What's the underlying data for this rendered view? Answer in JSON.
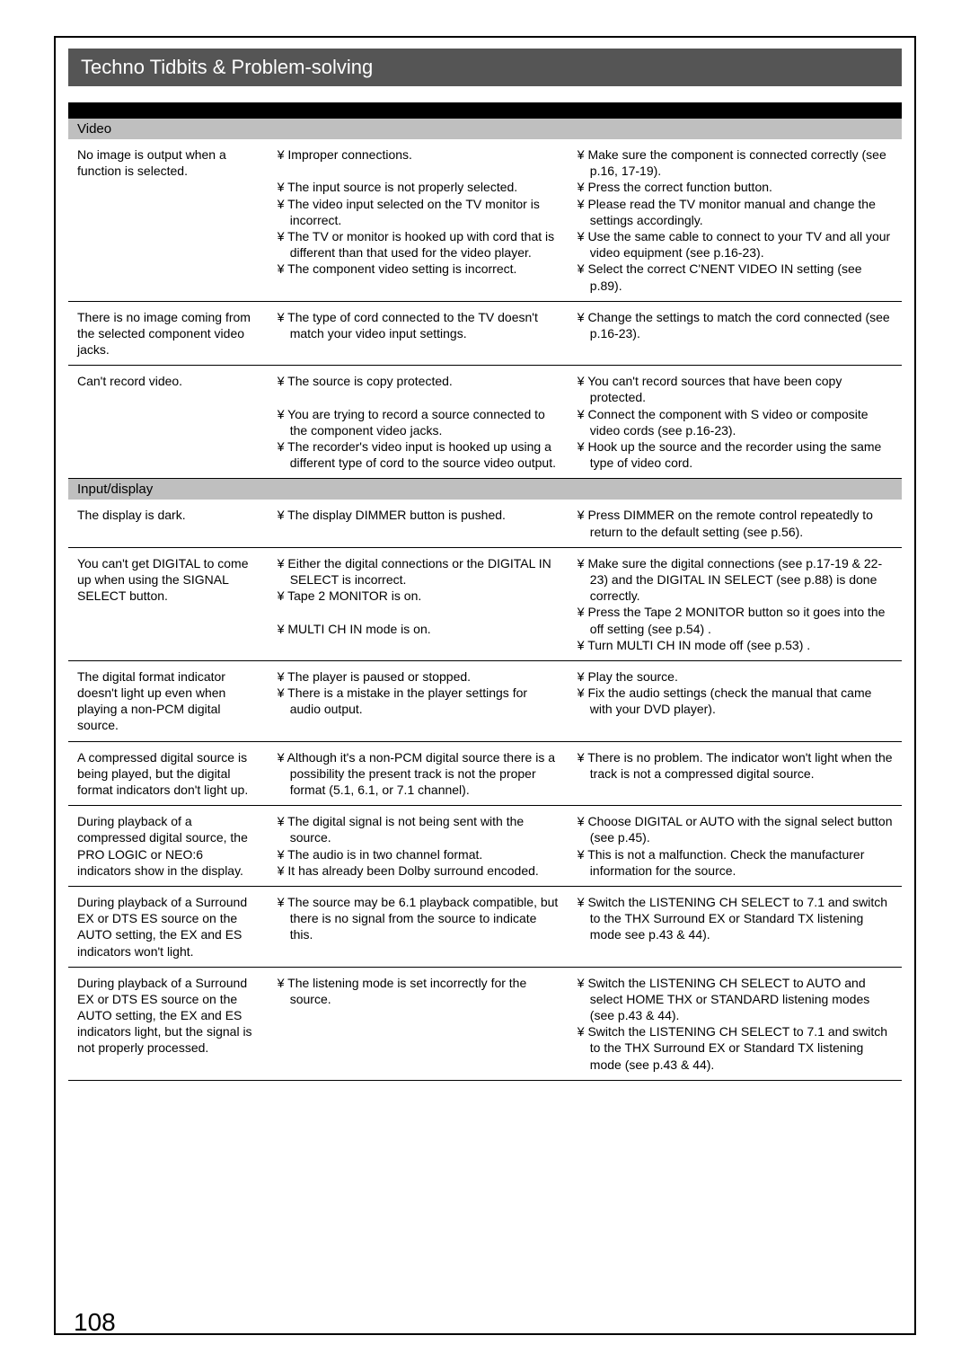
{
  "title": "Techno Tidbits & Problem-solving",
  "page_number": "108",
  "colors": {
    "title_bg": "#555555",
    "black_band": "#000000",
    "section_bg": "#bfbfbf"
  },
  "sections": [
    {
      "label": "Video",
      "rows": [
        {
          "problem": "No image is output when a function is selected.",
          "causes": [
            "¥  Improper connections.",
            "",
            "¥  The input source is not properly selected.",
            "¥  The video input selected on the TV monitor is incorrect.",
            "¥  The TV or monitor is hooked up with cord that is different than that used for the video player.",
            "¥  The component video setting is incorrect."
          ],
          "remedies": [
            "¥  Make sure the component is connected correctly (see p.16, 17-19).",
            "¥  Press the correct function button.",
            "¥  Please read the TV monitor manual and change the settings accordingly.",
            "¥  Use the same cable to connect to your TV and all your video equipment (see p.16-23).",
            "¥  Select the correct C'NENT VIDEO IN setting (see p.89)."
          ]
        },
        {
          "problem": "There is no image coming from the selected component video jacks.",
          "causes": [
            "¥  The type of cord connected to the TV doesn't match your video input settings."
          ],
          "remedies": [
            "¥  Change the settings to match the cord connected (see p.16-23)."
          ]
        },
        {
          "problem": "Can't record video.",
          "causes": [
            "¥  The source is copy protected.",
            "",
            "¥  You are trying to record a source connected to the component video jacks.",
            "¥  The recorder's video input is hooked up using a different type of cord to the source video output."
          ],
          "remedies": [
            "¥  You can't record sources that have been copy protected.",
            "¥  Connect the component with S video or composite video cords (see p.16-23).",
            "¥  Hook up the source and the recorder using the same type of video cord."
          ]
        }
      ]
    },
    {
      "label": "Input/display",
      "rows": [
        {
          "problem": "The display is dark.",
          "causes": [
            "¥  The display DIMMER button is pushed."
          ],
          "remedies": [
            "¥  Press DIMMER on the remote control repeatedly to return to the default setting (see p.56)."
          ]
        },
        {
          "problem": "You can't get DIGITAL to come up when using the SIGNAL SELECT button.",
          "causes": [
            "¥  Either the digital connections or the DIGITAL IN SELECT is incorrect.",
            "¥  Tape 2 MONITOR is on.",
            "",
            "¥  MULTI CH IN mode is on."
          ],
          "remedies": [
            "¥  Make sure the digital connections (see p.17-19 & 22-23) and the DIGITAL IN SELECT (see p.88) is done correctly.",
            "¥  Press the Tape 2 MONITOR button so it goes into the off setting (see p.54) .",
            "¥  Turn MULTI CH IN mode off (see p.53) ."
          ]
        },
        {
          "problem": "The digital format indicator doesn't light up even when playing a non-PCM digital source.",
          "causes": [
            "¥  The player is paused or stopped.",
            "¥  There is a mistake in the player settings for audio output."
          ],
          "remedies": [
            "¥  Play the source.",
            "¥  Fix the audio settings (check the manual that came with your DVD player)."
          ]
        },
        {
          "problem": "A compressed digital source is being played, but the digital format indicators don't light up.",
          "causes": [
            "¥  Although it's a non-PCM digital source there is a possibility the present track is not the proper format (5.1, 6.1, or 7.1 channel)."
          ],
          "remedies": [
            "¥  There is no problem. The indicator won't light when the track is not a compressed digital source."
          ]
        },
        {
          "problem": "During playback of a compressed digital source, the       PRO LOGIC or NEO:6 indicators show in the display.",
          "causes": [
            "¥  The digital signal is not being sent with the source.",
            "¥  The audio is in two channel format.",
            "¥  It has already been Dolby surround encoded."
          ],
          "remedies": [
            "¥  Choose DIGITAL or AUTO with the signal select button (see p.45).",
            "¥  This is not a malfunction. Check the manufacturer information for the source."
          ]
        },
        {
          "problem": "During playback of a Surround EX or DTS ES source on the AUTO setting, the EX and ES indicators won't light.",
          "causes": [
            "¥  The source may be 6.1 playback compatible, but there is no signal from the source to indicate this."
          ],
          "remedies": [
            "¥  Switch the LISTENING CH SELECT to 7.1 and switch to the THX Surround EX or Standard TX listening mode see p.43 & 44)."
          ]
        },
        {
          "problem": "During playback of a Surround EX or DTS ES source on the AUTO setting, the EX and ES indicators light, but the signal is not properly processed.",
          "causes": [
            "¥  The listening mode is set incorrectly for the source."
          ],
          "remedies": [
            "¥  Switch the LISTENING CH SELECT to AUTO and select HOME THX or STANDARD listening modes (see p.43 & 44).",
            "¥  Switch the LISTENING CH SELECT to 7.1 and switch to the THX Surround EX or Standard TX listening mode (see p.43 & 44)."
          ]
        }
      ]
    }
  ]
}
